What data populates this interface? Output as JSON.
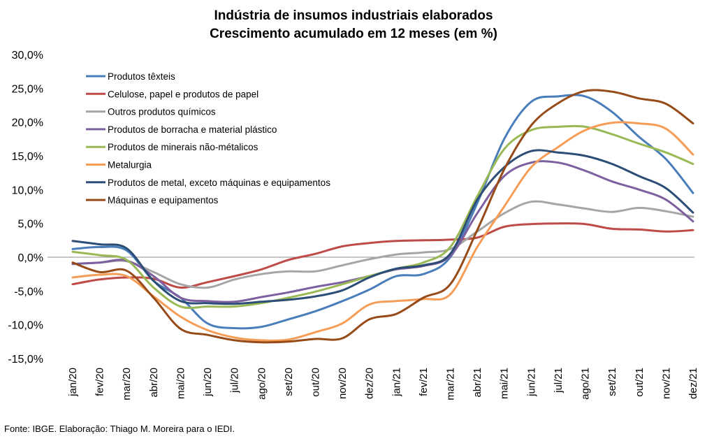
{
  "chart_data": {
    "type": "line",
    "title": "Indústria de insumos industriais elaborados",
    "subtitle": "Crescimento acumulado em 12 meses (em %)",
    "xlabel": "",
    "ylabel": "",
    "ylim": [
      -15,
      30
    ],
    "yticks": [
      -15,
      -10,
      -5,
      0,
      5,
      10,
      15,
      20,
      25,
      30
    ],
    "ytick_labels": [
      "-15,0%",
      "-10,0%",
      "-5,0%",
      "0,0%",
      "5,0%",
      "10,0%",
      "15,0%",
      "20,0%",
      "25,0%",
      "30,0%"
    ],
    "categories": [
      "jan/20",
      "fev/20",
      "mar/20",
      "abr/20",
      "mai/20",
      "jun/20",
      "jul/20",
      "ago/20",
      "set/20",
      "out/20",
      "nov/20",
      "dez/20",
      "jan/21",
      "fev/21",
      "mar/21",
      "abr/21",
      "mai/21",
      "jun/21",
      "jul/21",
      "ago/21",
      "set/21",
      "out/21",
      "nov/21",
      "dez/21"
    ],
    "grid": false,
    "legend_position": "top-left",
    "series": [
      {
        "name": "Produtos têxteis",
        "color": "#4a7ebb",
        "values": [
          1.2,
          1.5,
          1.0,
          -3.5,
          -6.0,
          -9.8,
          -10.5,
          -10.3,
          -9.2,
          -8.0,
          -6.5,
          -4.8,
          -2.8,
          -2.5,
          0.0,
          8.0,
          17.5,
          23.0,
          23.8,
          23.8,
          21.5,
          17.8,
          14.5,
          9.5
        ]
      },
      {
        "name": "Celulose, papel e produtos de papel",
        "color": "#be4b48",
        "values": [
          -4.0,
          -3.3,
          -3.0,
          -3.2,
          -4.5,
          -3.7,
          -2.8,
          -1.8,
          -0.4,
          0.5,
          1.6,
          2.1,
          2.4,
          2.5,
          2.6,
          2.9,
          4.5,
          4.9,
          5.0,
          4.9,
          4.2,
          4.1,
          3.8,
          4.0
        ]
      },
      {
        "name": "Outros produtos químicos",
        "color": "#a6a6a6",
        "values": [
          -1.0,
          -0.8,
          -0.6,
          -2.2,
          -4.0,
          -4.5,
          -3.3,
          -2.5,
          -2.1,
          -2.1,
          -1.2,
          -0.3,
          0.4,
          0.7,
          1.2,
          3.8,
          6.5,
          8.2,
          7.8,
          7.2,
          6.7,
          7.3,
          6.8,
          6.0
        ]
      },
      {
        "name": "Produtos de borracha e material plástico",
        "color": "#7d60a0",
        "values": [
          -1.0,
          -0.8,
          -0.5,
          -2.8,
          -6.0,
          -6.5,
          -6.6,
          -5.9,
          -5.2,
          -4.4,
          -3.7,
          -2.8,
          -1.8,
          -1.3,
          0.2,
          6.5,
          12.0,
          14.0,
          14.0,
          12.8,
          11.2,
          10.0,
          8.5,
          5.3
        ]
      },
      {
        "name": "Produtos de minerais não-métalicos",
        "color": "#98b954",
        "values": [
          0.8,
          0.3,
          -0.4,
          -4.5,
          -7.3,
          -7.3,
          -7.3,
          -6.8,
          -6.0,
          -5.1,
          -4.0,
          -2.8,
          -1.7,
          -0.8,
          1.5,
          9.0,
          16.0,
          18.8,
          19.3,
          19.3,
          18.2,
          16.8,
          15.5,
          13.8
        ]
      },
      {
        "name": "Metalurgia",
        "color": "#f59d56",
        "values": [
          -3.0,
          -2.6,
          -2.8,
          -5.8,
          -8.8,
          -10.8,
          -11.9,
          -12.3,
          -12.2,
          -11.1,
          -9.8,
          -7.0,
          -6.5,
          -6.2,
          -5.5,
          1.5,
          7.5,
          13.3,
          16.3,
          18.8,
          19.9,
          19.8,
          19.0,
          15.2
        ]
      },
      {
        "name": "Produtos de metal, exceto máquinas e equipamentos",
        "color": "#2c4d75",
        "values": [
          2.4,
          1.9,
          1.3,
          -3.5,
          -6.5,
          -6.8,
          -6.9,
          -6.6,
          -6.3,
          -5.8,
          -4.9,
          -3.0,
          -1.7,
          -1.2,
          0.5,
          8.5,
          13.3,
          15.7,
          15.5,
          15.0,
          13.8,
          12.0,
          10.2,
          6.6
        ]
      },
      {
        "name": "Máquinas e equipamentos",
        "color": "#964b19",
        "values": [
          -0.8,
          -2.2,
          -2.0,
          -6.0,
          -10.6,
          -11.5,
          -12.3,
          -12.6,
          -12.5,
          -12.1,
          -12.0,
          -9.2,
          -8.4,
          -6.0,
          -4.0,
          4.0,
          13.0,
          19.5,
          22.8,
          24.6,
          24.5,
          23.5,
          22.7,
          19.8
        ]
      }
    ]
  },
  "footer": {
    "source": "Fonte: IBGE. Elaboração: Thiago M. Moreira para o IEDI."
  }
}
